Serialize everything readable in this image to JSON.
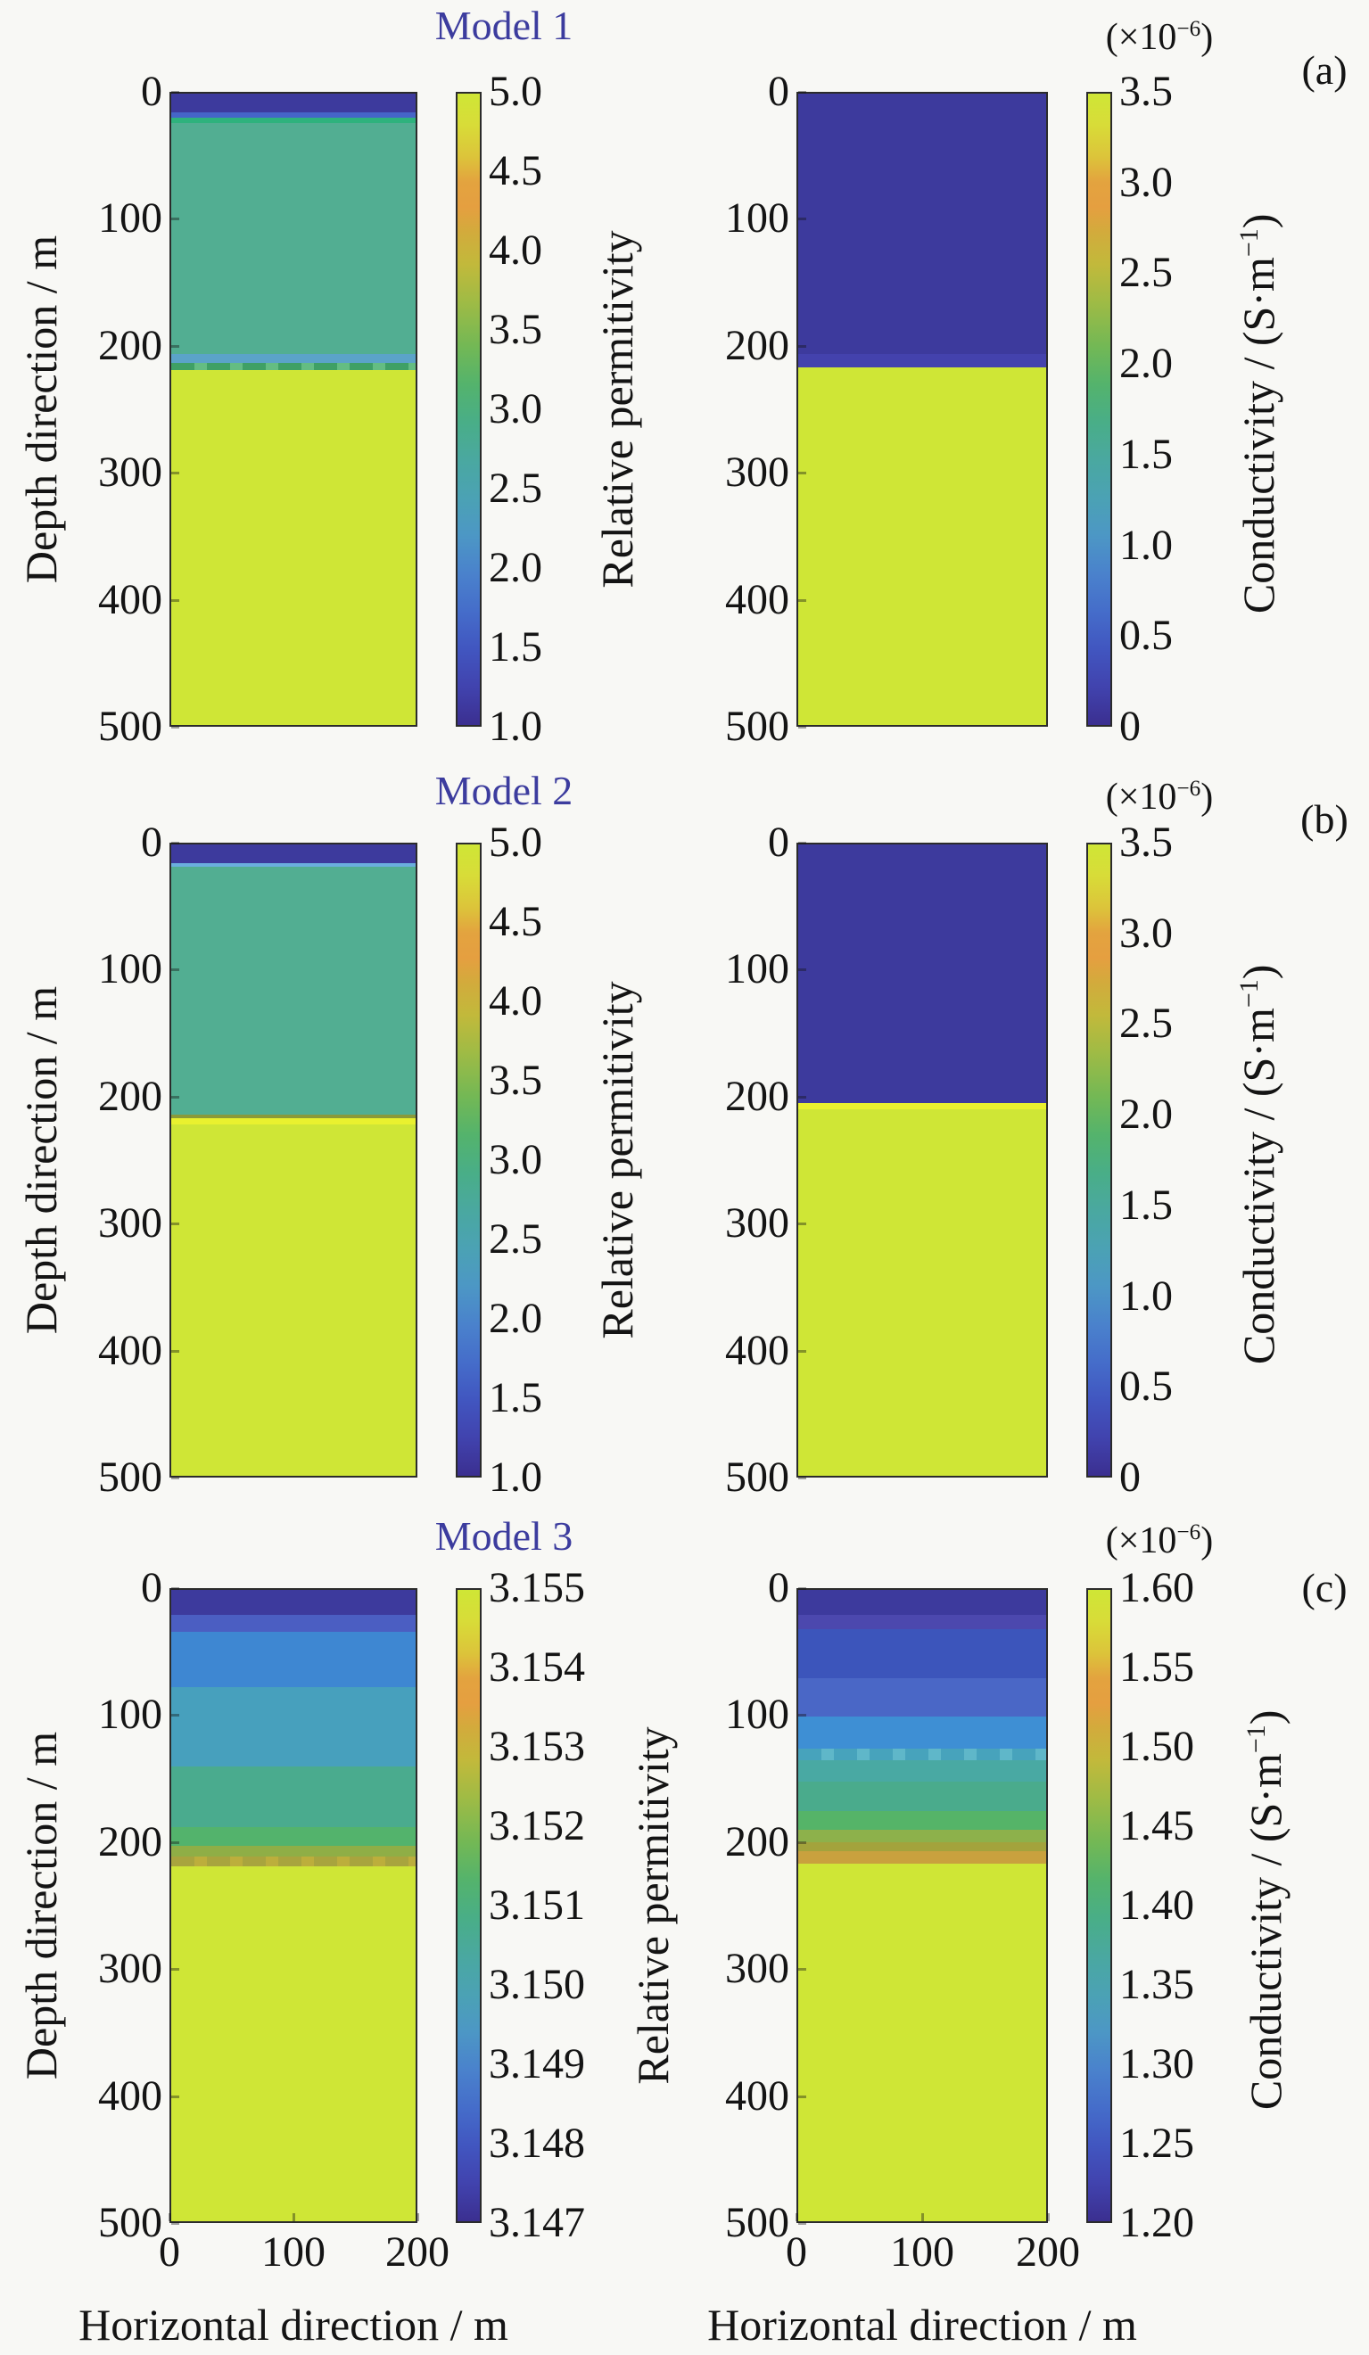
{
  "figure": {
    "bg": "#f8f8f5",
    "title_color": "#3c3c9e",
    "text_color": "#141414",
    "rows": [
      {
        "title": "Model 1",
        "letter": "(a)",
        "multiplier_prefix": "(×10",
        "multiplier_sup": "−6",
        "multiplier_suffix": ")",
        "left": {
          "ylabel": "Depth direction / m",
          "yticks": [
            "0",
            "100",
            "200",
            "300",
            "400",
            "500"
          ],
          "cb_ticks": [
            "5.0",
            "4.5",
            "4.0",
            "3.5",
            "3.0",
            "2.5",
            "2.0",
            "1.5",
            "1.0"
          ],
          "cb_label": "Relative permitivity"
        },
        "right": {
          "yticks": [
            "0",
            "100",
            "200",
            "300",
            "400",
            "500"
          ],
          "cb_ticks": [
            "3.5",
            "3.0",
            "2.5",
            "2.0",
            "1.5",
            "1.0",
            "0.5",
            "0"
          ],
          "cb_label_prefix": "Conductivity / (S·m",
          "cb_label_sup": "−1",
          "cb_label_suffix": ")"
        }
      },
      {
        "title": "Model 2",
        "letter": "(b)",
        "multiplier_prefix": "(×10",
        "multiplier_sup": "−6",
        "multiplier_suffix": ")",
        "left": {
          "ylabel": "Depth direction / m",
          "yticks": [
            "0",
            "100",
            "200",
            "300",
            "400",
            "500"
          ],
          "cb_ticks": [
            "5.0",
            "4.5",
            "4.0",
            "3.5",
            "3.0",
            "2.5",
            "2.0",
            "1.5",
            "1.0"
          ],
          "cb_label": "Relative permitivity"
        },
        "right": {
          "yticks": [
            "0",
            "100",
            "200",
            "300",
            "400",
            "500"
          ],
          "cb_ticks": [
            "3.5",
            "3.0",
            "2.5",
            "2.0",
            "1.5",
            "1.0",
            "0.5",
            "0"
          ],
          "cb_label_prefix": "Conductivity / (S·m",
          "cb_label_sup": "−1",
          "cb_label_suffix": ")"
        }
      },
      {
        "title": "Model 3",
        "letter": "(c)",
        "multiplier_prefix": "(×10",
        "multiplier_sup": "−6",
        "multiplier_suffix": ")",
        "left": {
          "ylabel": "Depth direction / m",
          "yticks": [
            "0",
            "100",
            "200",
            "300",
            "400",
            "500"
          ],
          "cb_ticks": [
            "3.155",
            "3.154",
            "3.153",
            "3.152",
            "3.151",
            "3.150",
            "3.149",
            "3.148",
            "3.147"
          ],
          "cb_label": "Relative permitivity"
        },
        "right": {
          "yticks": [
            "0",
            "100",
            "200",
            "300",
            "400",
            "500"
          ],
          "cb_ticks": [
            "1.60",
            "1.55",
            "1.50",
            "1.45",
            "1.40",
            "1.35",
            "1.30",
            "1.25",
            "1.20"
          ],
          "cb_label_prefix": "Conductivity / (S·m",
          "cb_label_sup": "−1",
          "cb_label_suffix": ")"
        }
      }
    ],
    "xaxis": {
      "ticks": [
        "0",
        "100",
        "200"
      ],
      "label": "Horizontal direction / m"
    }
  },
  "chart_data": {
    "type": "heatmap",
    "depth_axis": {
      "label": "Depth direction / m",
      "range_m": [
        0,
        500
      ],
      "ticks_m": [
        0,
        100,
        200,
        300,
        400,
        500
      ]
    },
    "horizontal_axis": {
      "label": "Horizontal direction / m",
      "range_m": [
        0,
        200
      ],
      "ticks_m": [
        0,
        100,
        200
      ]
    },
    "conductivity_scale_note": "(×10−6) S·m−1",
    "colorbar_gradient": [
      [
        "#cfe636",
        0
      ],
      [
        "#d8dc38",
        5
      ],
      [
        "#dcc43a",
        10
      ],
      [
        "#e3a33f",
        14
      ],
      [
        "#e59f40",
        18
      ],
      [
        "#d2ab3c",
        22
      ],
      [
        "#c2b93b",
        27
      ],
      [
        "#9fbb45",
        33
      ],
      [
        "#73b855",
        40
      ],
      [
        "#54b36c",
        46
      ],
      [
        "#49ae87",
        52
      ],
      [
        "#4aa8a0",
        58
      ],
      [
        "#4ba2b4",
        64
      ],
      [
        "#4c97c5",
        70
      ],
      [
        "#4a82cc",
        76
      ],
      [
        "#456dca",
        82
      ],
      [
        "#4156c0",
        88
      ],
      [
        "#4143ae",
        94
      ],
      [
        "#3b2f90",
        100
      ]
    ],
    "models": [
      {
        "name": "Model 1",
        "panel": "(a)",
        "permittivity": {
          "range": [
            1.0,
            5.0
          ],
          "tick_values": [
            5.0,
            4.5,
            4.0,
            3.5,
            3.0,
            2.5,
            2.0,
            1.5,
            1.0
          ],
          "layers": [
            {
              "depth_m": [
                0,
                15
              ],
              "color": "#3d3a9d"
            },
            {
              "depth_m": [
                15,
                19
              ],
              "color": "#4565c8"
            },
            {
              "depth_m": [
                19,
                23
              ],
              "color": "#2eb27d"
            },
            {
              "depth_m": [
                23,
                206
              ],
              "color": "#52ae92"
            },
            {
              "depth_m": [
                206,
                213
              ],
              "color": "#5ba3c9"
            },
            {
              "depth_m": [
                213,
                219
              ],
              "color": "#3fa065",
              "dash": "#64bd82"
            },
            {
              "depth_m": [
                219,
                500
              ],
              "color": "#cfe636"
            }
          ]
        },
        "conductivity": {
          "range_1e6": [
            0,
            3.5
          ],
          "tick_values": [
            3.5,
            3.0,
            2.5,
            2.0,
            1.5,
            1.0,
            0.5,
            0
          ],
          "layers": [
            {
              "depth_m": [
                0,
                206
              ],
              "color": "#3d3a9d"
            },
            {
              "depth_m": [
                206,
                217
              ],
              "color": "#4442ad"
            },
            {
              "depth_m": [
                217,
                500
              ],
              "color": "#cfe636"
            }
          ]
        }
      },
      {
        "name": "Model 2",
        "panel": "(b)",
        "permittivity": {
          "range": [
            1.0,
            5.0
          ],
          "tick_values": [
            5.0,
            4.5,
            4.0,
            3.5,
            3.0,
            2.5,
            2.0,
            1.5,
            1.0
          ],
          "layers": [
            {
              "depth_m": [
                0,
                15
              ],
              "color": "#3d3a9d"
            },
            {
              "depth_m": [
                15,
                18
              ],
              "color": "#6aaede"
            },
            {
              "depth_m": [
                18,
                214
              ],
              "color": "#52ae92"
            },
            {
              "depth_m": [
                214,
                217
              ],
              "color": "#8a9a3a"
            },
            {
              "depth_m": [
                217,
                222
              ],
              "color": "#e9f12f"
            },
            {
              "depth_m": [
                222,
                500
              ],
              "color": "#cfe636"
            }
          ]
        },
        "conductivity": {
          "range_1e6": [
            0,
            3.5
          ],
          "tick_values": [
            3.5,
            3.0,
            2.5,
            2.0,
            1.5,
            1.0,
            0.5,
            0
          ],
          "layers": [
            {
              "depth_m": [
                0,
                205
              ],
              "color": "#3d3a9d"
            },
            {
              "depth_m": [
                205,
                210
              ],
              "color": "#e9f12f"
            },
            {
              "depth_m": [
                210,
                500
              ],
              "color": "#cfe636"
            }
          ]
        }
      },
      {
        "name": "Model 3",
        "panel": "(c)",
        "permittivity": {
          "range": [
            3.147,
            3.155
          ],
          "tick_values": [
            3.155,
            3.154,
            3.153,
            3.152,
            3.151,
            3.15,
            3.149,
            3.148,
            3.147
          ],
          "layers": [
            {
              "depth_m": [
                0,
                20
              ],
              "color": "#3d3a9d"
            },
            {
              "depth_m": [
                20,
                33
              ],
              "color": "#4b5ec2"
            },
            {
              "depth_m": [
                33,
                77
              ],
              "color": "#3e87d2"
            },
            {
              "depth_m": [
                77,
                140
              ],
              "color": "#47a0bd"
            },
            {
              "depth_m": [
                140,
                188
              ],
              "color": "#4aab8e"
            },
            {
              "depth_m": [
                188,
                203
              ],
              "color": "#53b36c"
            },
            {
              "depth_m": [
                203,
                211
              ],
              "color": "#8fae46"
            },
            {
              "depth_m": [
                211,
                219
              ],
              "color": "#a8a43e",
              "dash": "#bcae3c"
            },
            {
              "depth_m": [
                219,
                500
              ],
              "color": "#cfe636"
            }
          ]
        },
        "conductivity": {
          "range_1e6": [
            1.2,
            1.6
          ],
          "tick_values": [
            1.6,
            1.55,
            1.5,
            1.45,
            1.4,
            1.35,
            1.3,
            1.25,
            1.2
          ],
          "layers": [
            {
              "depth_m": [
                0,
                20
              ],
              "color": "#3d3a9d"
            },
            {
              "depth_m": [
                20,
                31
              ],
              "color": "#4c48ae"
            },
            {
              "depth_m": [
                31,
                70
              ],
              "color": "#3c55bb"
            },
            {
              "depth_m": [
                70,
                100
              ],
              "color": "#4a67c6"
            },
            {
              "depth_m": [
                100,
                126
              ],
              "color": "#3e8fd4"
            },
            {
              "depth_m": [
                126,
                135
              ],
              "color": "#47a3bc",
              "dash": "#5fb7c9"
            },
            {
              "depth_m": [
                135,
                152
              ],
              "color": "#49a9a3"
            },
            {
              "depth_m": [
                152,
                175
              ],
              "color": "#4aab8c"
            },
            {
              "depth_m": [
                175,
                190
              ],
              "color": "#55b468"
            },
            {
              "depth_m": [
                190,
                200
              ],
              "color": "#8db14b"
            },
            {
              "depth_m": [
                200,
                207
              ],
              "color": "#a3a33c"
            },
            {
              "depth_m": [
                207,
                217
              ],
              "color": "#c9a13e"
            },
            {
              "depth_m": [
                217,
                500
              ],
              "color": "#cfe636"
            }
          ]
        }
      }
    ]
  }
}
